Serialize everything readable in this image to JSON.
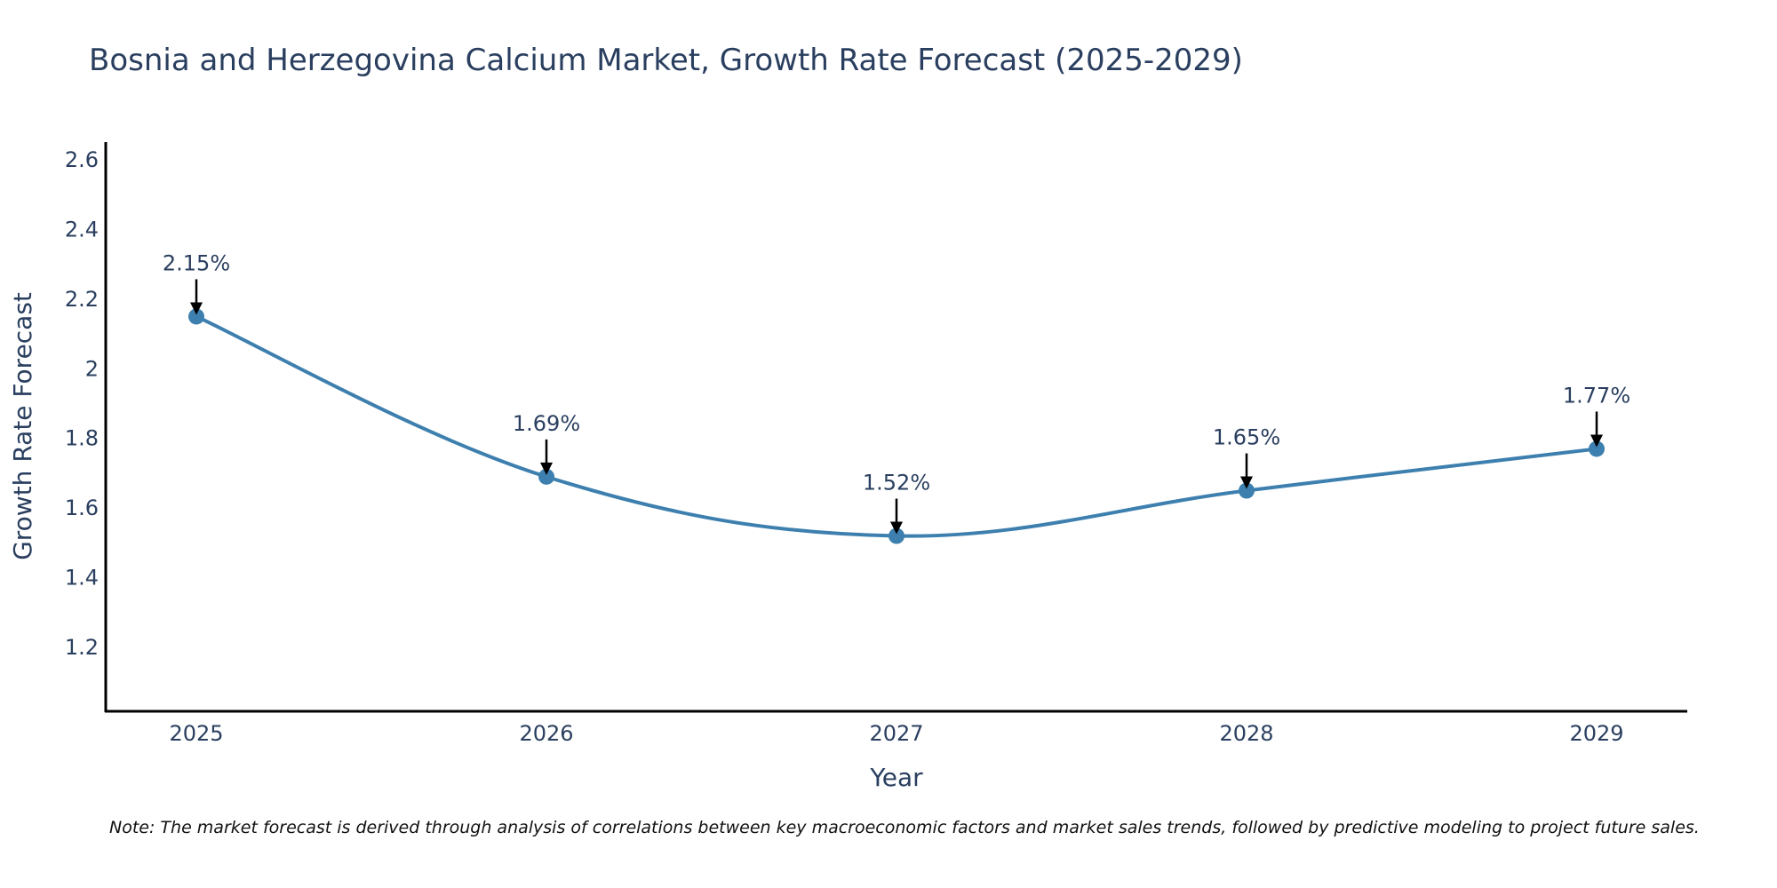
{
  "chart_data": {
    "type": "line",
    "title": "Bosnia and Herzegovina Calcium Market, Growth Rate Forecast (2025-2029)",
    "xlabel": "Year",
    "ylabel": "Growth Rate Forecast",
    "categories": [
      "2025",
      "2026",
      "2027",
      "2028",
      "2029"
    ],
    "series": [
      {
        "name": "Growth Rate Forecast",
        "values": [
          2.15,
          1.69,
          1.52,
          1.65,
          1.77
        ],
        "labels": [
          "2.15%",
          "1.69%",
          "1.52%",
          "1.65%",
          "1.77%"
        ],
        "color": "#3d7fae"
      }
    ],
    "ylim": [
      1.02,
      2.65
    ],
    "yticks": [
      1.2,
      1.4,
      1.6,
      1.8,
      2,
      2.2,
      2.4,
      2.6
    ],
    "ytick_labels": [
      "1.2",
      "1.4",
      "1.6",
      "1.8",
      "2",
      "2.2",
      "2.4",
      "2.6"
    ],
    "grid": false,
    "line_shape": "spline",
    "axis_color": "#000000",
    "annotation_arrow_color": "#000000"
  },
  "note": "Note: The market forecast is derived through analysis of correlations between key macroeconomic factors and market sales trends, followed by predictive modeling to project future sales."
}
